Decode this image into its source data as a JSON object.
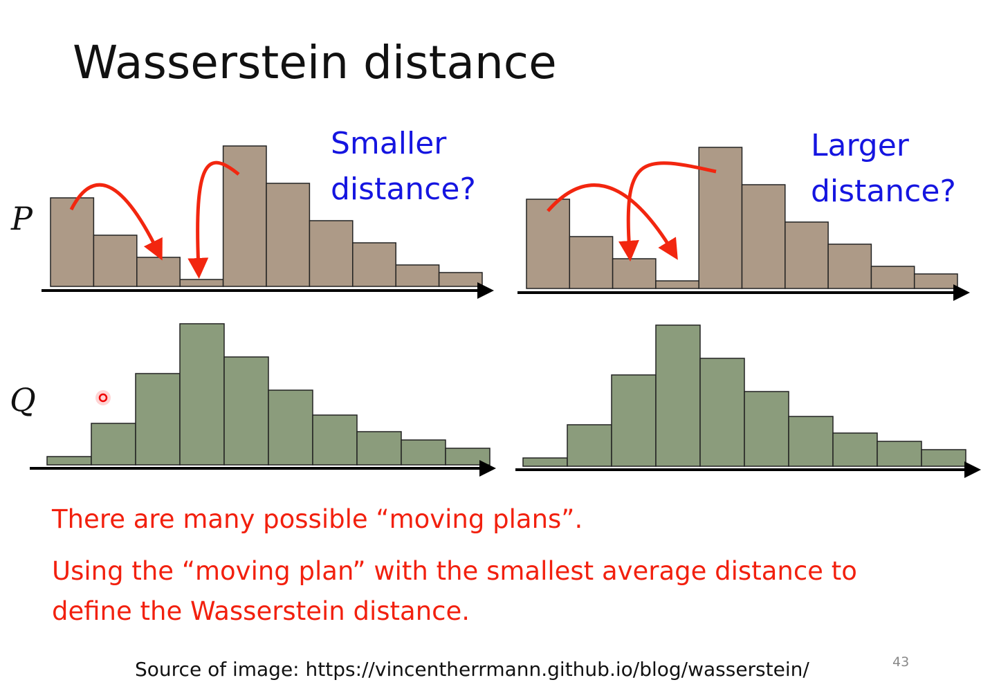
{
  "slide": {
    "title": "Wasserstein distance",
    "row_labels": [
      "P",
      "Q"
    ],
    "left_annotation": [
      "Smaller",
      "distance?"
    ],
    "right_annotation": [
      "Larger",
      "distance?"
    ],
    "notes": [
      "There are many possible “moving plans”.",
      "Using the “moving plan” with the smallest average distance to",
      "define the Wasserstein distance."
    ],
    "source": "Source of image: https://vincentherrmann.github.io/blog/wasserstein/",
    "page_number": "43"
  }
}
